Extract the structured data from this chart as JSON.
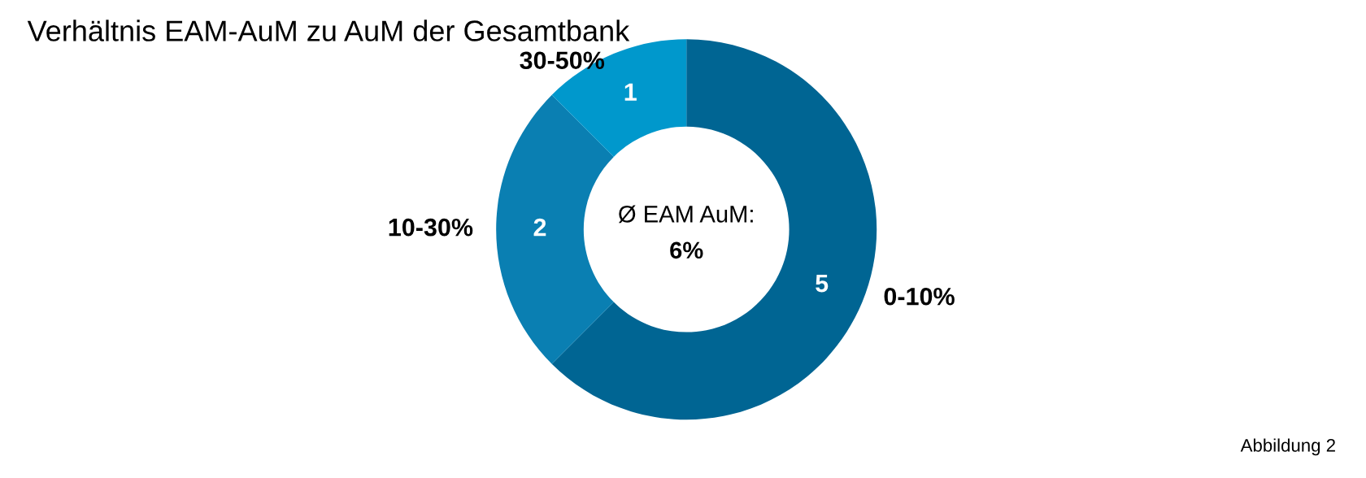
{
  "chart_data": {
    "type": "donut",
    "title": "Verhältnis EAM-AuM zu AuM der Gesamtbank",
    "categories": [
      "0-10%",
      "10-30%",
      "30-50%"
    ],
    "values": [
      5,
      2,
      1
    ],
    "colors": [
      "#006593",
      "#0a7fb2",
      "#0098cc"
    ],
    "data_labels": true,
    "legend": false,
    "annotations": [
      "Ø EAM AuM:",
      "6%",
      "Abbildung 2"
    ]
  }
}
